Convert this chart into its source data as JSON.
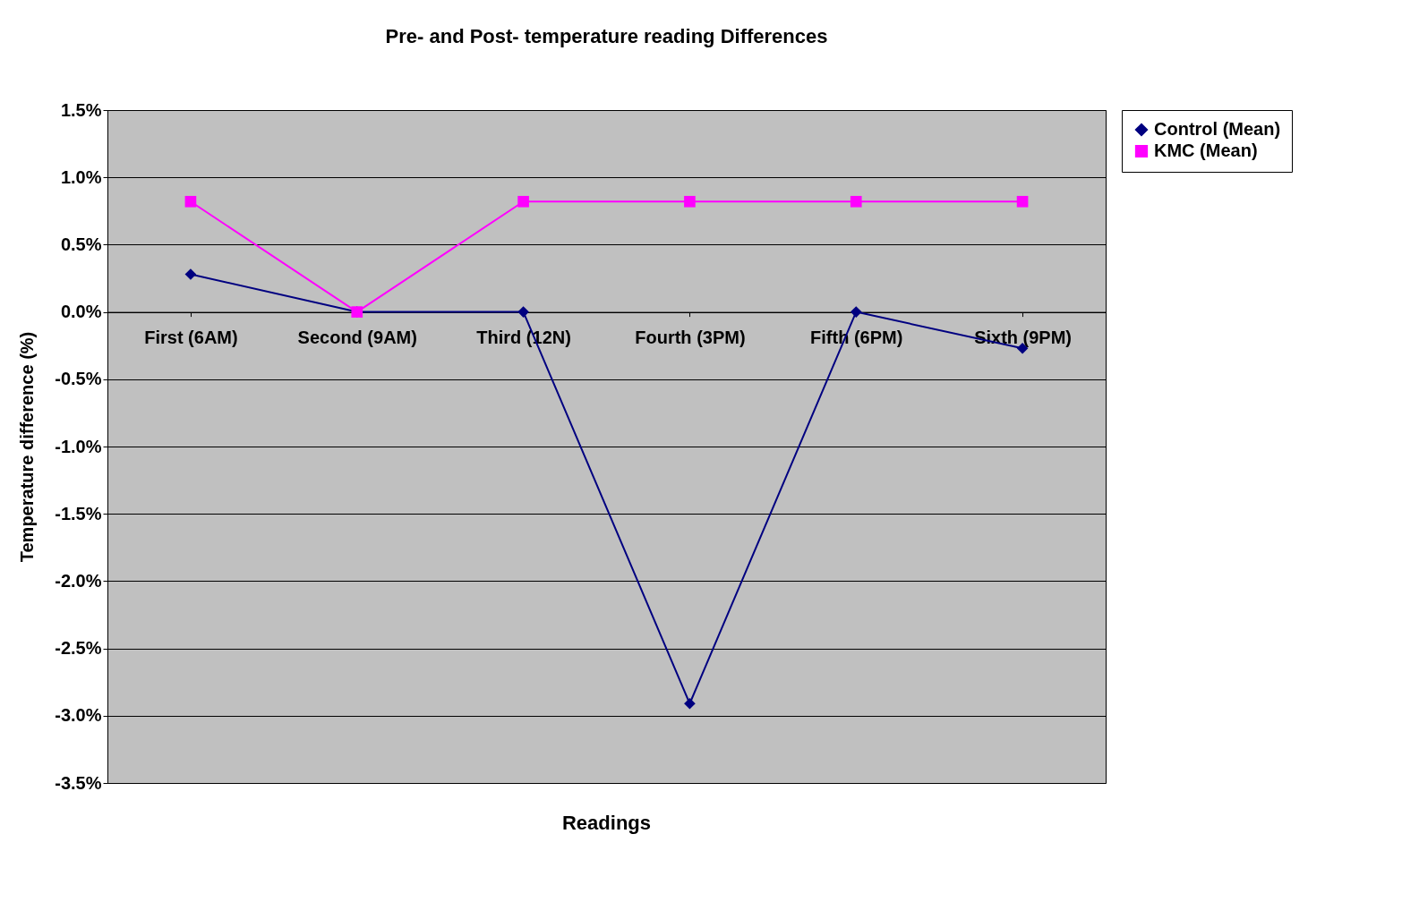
{
  "chart_data": {
    "type": "line",
    "title": "Pre- and Post- temperature reading Differences",
    "xlabel": "Readings",
    "ylabel": "Temperature difference (%)",
    "categories": [
      "First (6AM)",
      "Second (9AM)",
      "Third (12N)",
      "Fourth (3PM)",
      "Fifth (6PM)",
      "Sixth (9PM)"
    ],
    "series": [
      {
        "name": "Control (Mean)",
        "color": "#000080",
        "marker": "diamond",
        "values": [
          0.28,
          0,
          0,
          -2.91,
          0,
          -0.27
        ]
      },
      {
        "name": "KMC (Mean)",
        "color": "#ff00ff",
        "marker": "square",
        "values": [
          0.82,
          0,
          0.82,
          0.82,
          0.82,
          0.82
        ]
      }
    ],
    "ylim": [
      -3.5,
      1.5
    ],
    "yticks": [
      {
        "value": -3.5,
        "label": "-3.5%"
      },
      {
        "value": -3.0,
        "label": "-3.0%"
      },
      {
        "value": -2.5,
        "label": "-2.5%"
      },
      {
        "value": -2.0,
        "label": "-2.0%"
      },
      {
        "value": -1.5,
        "label": "-1.5%"
      },
      {
        "value": -1.0,
        "label": "-1.0%"
      },
      {
        "value": -0.5,
        "label": "-0.5%"
      },
      {
        "value": 0,
        "label": "0.0%"
      },
      {
        "value": 0.5,
        "label": "0.5%"
      },
      {
        "value": 1.0,
        "label": "1.0%"
      },
      {
        "value": 1.5,
        "label": "1.5%"
      }
    ],
    "grid": "y",
    "legend": "right",
    "line_style": "solid"
  }
}
